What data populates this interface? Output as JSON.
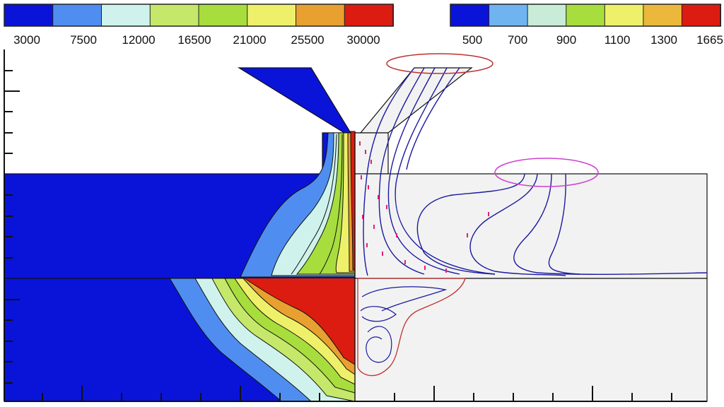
{
  "colors": {
    "blue": "#0a14d8",
    "light_blue": "#4f8ef0",
    "pale_cyan": "#cff3ec",
    "yellow_green": "#c5e86a",
    "green": "#a8dd3e",
    "yellow": "#eef06a",
    "orange": "#e8a030",
    "red": "#dc1c10",
    "background_gray": "#f2f2f2",
    "stream_blue": "#1a1aa0",
    "vector_pink": "#e0207a",
    "ellipse_red": "#c03030",
    "ellipse_magenta": "#d040d0"
  },
  "legend_left": {
    "swatches": [
      "#0a14d8",
      "#4f8ef0",
      "#cff3ec",
      "#c5e86a",
      "#a8dd3e",
      "#eef06a",
      "#e8a030",
      "#dc1c10"
    ],
    "labels": [
      "3000",
      "7500",
      "12000",
      "16500",
      "21000",
      "25500",
      "30000"
    ]
  },
  "legend_right": {
    "swatches": [
      "#0a14d8",
      "#6fb4f0",
      "#c8ecd8",
      "#a8dd3e",
      "#eef06a",
      "#ecb83c",
      "#dc1c10"
    ],
    "labels": [
      "500",
      "700",
      "900",
      "1100",
      "1300",
      "1665"
    ]
  }
}
